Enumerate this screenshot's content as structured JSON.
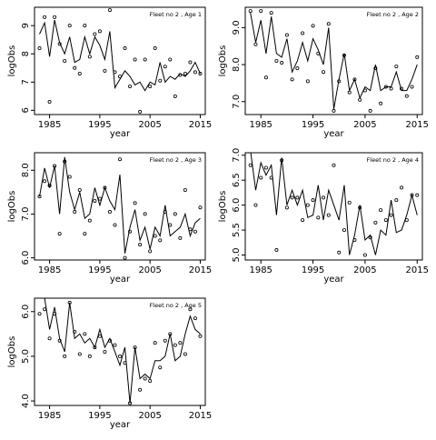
{
  "chart_data": [
    {
      "type": "line",
      "title": "Fleet no 2 , Age 1",
      "xlabel": "year",
      "ylabel": "logObs",
      "xlim": [
        1982,
        2016
      ],
      "ylim": [
        5.85,
        9.65
      ],
      "xticks": [
        1985,
        1995,
        2005,
        2015
      ],
      "xtick_labels": [
        "1985",
        "1995",
        "2005",
        "2015"
      ],
      "yticks": [
        6,
        7,
        8,
        9
      ],
      "ytick_labels": [
        "6",
        "7",
        "8",
        "9"
      ],
      "grid": false,
      "legend": "none",
      "x": [
        1983,
        1984,
        1985,
        1986,
        1987,
        1988,
        1989,
        1990,
        1991,
        1992,
        1993,
        1994,
        1995,
        1996,
        1997,
        1998,
        1999,
        2000,
        2001,
        2002,
        2003,
        2004,
        2005,
        2006,
        2007,
        2008,
        2009,
        2010,
        2011,
        2012,
        2013,
        2014,
        2015
      ],
      "series": [
        {
          "style": "line",
          "values": [
            8.7,
            9.1,
            7.9,
            9.2,
            8.4,
            8.0,
            8.6,
            7.7,
            7.8,
            8.6,
            8.0,
            8.6,
            8.3,
            7.8,
            8.8,
            6.8,
            7.1,
            7.4,
            7.2,
            6.9,
            7.0,
            6.7,
            7.0,
            6.9,
            7.7,
            7.0,
            7.2,
            7.1,
            7.3,
            7.2,
            7.4,
            7.7,
            7.3
          ]
        },
        {
          "style": "points",
          "values": [
            8.2,
            9.3,
            6.3,
            9.3,
            8.35,
            7.75,
            9.0,
            7.5,
            7.3,
            9.0,
            7.9,
            8.7,
            8.8,
            7.4,
            9.55,
            7.35,
            7.2,
            8.2,
            6.85,
            7.8,
            5.95,
            7.8,
            6.85,
            8.2,
            7.05,
            7.55,
            7.8,
            6.5,
            7.25,
            7.3,
            7.7,
            7.35,
            7.3
          ]
        }
      ]
    },
    {
      "type": "line",
      "title": "Fleet no 2 , Age 2",
      "xlabel": "year",
      "ylabel": "logObs",
      "xlim": [
        1982,
        2016
      ],
      "ylim": [
        6.65,
        9.55
      ],
      "xticks": [
        1985,
        1995,
        2005,
        2015
      ],
      "xtick_labels": [
        "1985",
        "1995",
        "2005",
        "2015"
      ],
      "yticks": [
        7.0,
        8.0,
        9.0
      ],
      "ytick_labels": [
        "7.0",
        "8.0",
        "9.0"
      ],
      "grid": false,
      "legend": "none",
      "x": [
        1983,
        1984,
        1985,
        1986,
        1987,
        1988,
        1989,
        1990,
        1991,
        1992,
        1993,
        1994,
        1995,
        1996,
        1997,
        1998,
        1999,
        2000,
        2001,
        2002,
        2003,
        2004,
        2005,
        2006,
        2007,
        2008,
        2009,
        2010,
        2011,
        2012,
        2013,
        2014,
        2015
      ],
      "series": [
        {
          "style": "line",
          "values": [
            9.4,
            8.6,
            9.2,
            8.3,
            9.3,
            8.3,
            8.2,
            8.7,
            7.8,
            8.1,
            8.6,
            8.1,
            8.7,
            8.4,
            8.0,
            9.0,
            6.8,
            7.6,
            8.3,
            7.3,
            7.6,
            7.1,
            7.4,
            7.3,
            8.0,
            7.3,
            7.4,
            7.4,
            7.8,
            7.3,
            7.3,
            7.6,
            8.0
          ]
        },
        {
          "style": "points",
          "values": [
            9.45,
            8.55,
            9.45,
            7.65,
            9.4,
            8.1,
            8.05,
            8.8,
            7.6,
            7.9,
            8.85,
            7.55,
            9.05,
            8.3,
            7.8,
            9.1,
            6.75,
            7.55,
            8.25,
            7.25,
            7.6,
            7.05,
            7.3,
            6.75,
            7.9,
            6.95,
            7.4,
            7.35,
            7.95,
            7.35,
            7.15,
            7.4,
            8.2
          ]
        }
      ]
    },
    {
      "type": "line",
      "title": "Fleet no 2 , Age 3",
      "xlabel": "year",
      "ylabel": "logObs",
      "xlim": [
        1982,
        2016
      ],
      "ylim": [
        5.95,
        8.4
      ],
      "xticks": [
        1985,
        1995,
        2005,
        2015
      ],
      "xtick_labels": [
        "1985",
        "1995",
        "2005",
        "2015"
      ],
      "yticks": [
        6.0,
        7.0,
        8.0
      ],
      "ytick_labels": [
        "6.0",
        "7.0",
        "8.0"
      ],
      "grid": false,
      "legend": "none",
      "x": [
        1983,
        1984,
        1985,
        1986,
        1987,
        1988,
        1989,
        1990,
        1991,
        1992,
        1993,
        1994,
        1995,
        1996,
        1997,
        1998,
        1999,
        2000,
        2001,
        2002,
        2003,
        2004,
        2005,
        2006,
        2007,
        2008,
        2009,
        2010,
        2011,
        2012,
        2013,
        2014,
        2015
      ],
      "series": [
        {
          "style": "line",
          "values": [
            7.4,
            8.05,
            7.6,
            8.1,
            7.0,
            8.3,
            7.5,
            7.1,
            7.5,
            6.9,
            7.0,
            7.6,
            7.2,
            7.6,
            7.3,
            7.1,
            7.9,
            6.1,
            6.7,
            7.1,
            6.4,
            6.7,
            6.2,
            6.7,
            6.5,
            7.2,
            6.5,
            6.6,
            6.7,
            7.0,
            6.5,
            6.8,
            6.9
          ]
        },
        {
          "style": "points",
          "values": [
            7.4,
            7.75,
            7.65,
            8.1,
            6.55,
            8.2,
            7.85,
            7.05,
            7.55,
            6.55,
            6.85,
            7.3,
            7.35,
            7.6,
            7.05,
            6.75,
            8.25,
            6.0,
            6.6,
            7.25,
            6.3,
            7.0,
            6.15,
            6.5,
            6.4,
            7.05,
            6.75,
            7.0,
            6.45,
            7.55,
            6.65,
            6.6,
            7.15
          ]
        }
      ]
    },
    {
      "type": "line",
      "title": "Fleet no 2 , Age 4",
      "xlabel": "year",
      "ylabel": "logObs",
      "xlim": [
        1982,
        2016
      ],
      "ylim": [
        4.9,
        7.05
      ],
      "xticks": [
        1985,
        1995,
        2005,
        2015
      ],
      "xtick_labels": [
        "1985",
        "1995",
        "2005",
        "2015"
      ],
      "yticks": [
        5.0,
        5.5,
        6.0,
        6.5,
        7.0
      ],
      "ytick_labels": [
        "5.0",
        "5.5",
        "6.0",
        "6.5",
        "7.0"
      ],
      "grid": false,
      "legend": "none",
      "x": [
        1983,
        1984,
        1985,
        1986,
        1987,
        1988,
        1989,
        1990,
        1991,
        1992,
        1993,
        1994,
        1995,
        1996,
        1997,
        1998,
        1999,
        2000,
        2001,
        2002,
        2003,
        2004,
        2005,
        2006,
        2007,
        2008,
        2009,
        2010,
        2011,
        2012,
        2013,
        2014,
        2015
      ],
      "series": [
        {
          "style": "line",
          "values": [
            7.1,
            6.3,
            6.85,
            6.6,
            6.8,
            5.8,
            6.95,
            6.0,
            6.3,
            6.0,
            6.3,
            5.75,
            5.8,
            6.4,
            5.7,
            6.3,
            6.0,
            5.7,
            6.4,
            5.0,
            5.4,
            6.0,
            5.3,
            5.4,
            5.0,
            5.5,
            5.4,
            6.1,
            5.45,
            5.5,
            5.8,
            6.2,
            5.8
          ]
        },
        {
          "style": "points",
          "values": [
            6.8,
            6.0,
            6.55,
            6.75,
            6.55,
            5.1,
            6.9,
            5.95,
            6.15,
            6.15,
            5.7,
            6.0,
            6.1,
            5.75,
            6.15,
            5.8,
            6.8,
            5.05,
            5.5,
            6.05,
            5.3,
            5.95,
            5.0,
            5.35,
            5.65,
            5.9,
            5.7,
            5.8,
            6.1,
            6.35,
            5.7,
            6.2,
            6.2
          ]
        }
      ]
    },
    {
      "type": "line",
      "title": "Fleet no 2 , Age 5",
      "xlabel": "year",
      "ylabel": "logObs",
      "xlim": [
        1982,
        2016
      ],
      "ylim": [
        3.9,
        6.3
      ],
      "xticks": [
        1985,
        1995,
        2005,
        2015
      ],
      "xtick_labels": [
        "1985",
        "1995",
        "2005",
        "2015"
      ],
      "yticks": [
        4.0,
        5.0,
        6.0
      ],
      "ytick_labels": [
        "4.0",
        "5.0",
        "6.0"
      ],
      "grid": false,
      "legend": "none",
      "x": [
        1983,
        1984,
        1985,
        1986,
        1987,
        1988,
        1989,
        1990,
        1991,
        1992,
        1993,
        1994,
        1995,
        1996,
        1997,
        1998,
        1999,
        2000,
        2001,
        2002,
        2003,
        2004,
        2005,
        2006,
        2007,
        2008,
        2009,
        2010,
        2011,
        2012,
        2013,
        2014,
        2015
      ],
      "series": [
        {
          "style": "line",
          "values": [
            6.3,
            6.3,
            5.6,
            6.1,
            5.4,
            5.1,
            6.2,
            5.4,
            5.5,
            5.3,
            5.4,
            5.2,
            5.6,
            5.2,
            5.4,
            5.1,
            4.8,
            5.2,
            3.95,
            5.2,
            4.5,
            4.6,
            4.5,
            4.9,
            4.9,
            5.0,
            5.5,
            4.9,
            5.0,
            5.5,
            5.9,
            5.6,
            5.5
          ]
        },
        {
          "style": "points",
          "values": [
            5.95,
            6.05,
            5.4,
            5.95,
            5.35,
            5.0,
            6.2,
            5.55,
            5.05,
            5.5,
            5.0,
            5.2,
            5.45,
            5.1,
            5.35,
            5.25,
            5.0,
            4.85,
            3.95,
            5.2,
            4.25,
            4.5,
            4.45,
            5.3,
            4.75,
            5.35,
            5.5,
            5.25,
            5.3,
            5.05,
            6.05,
            5.85,
            5.45
          ]
        }
      ]
    }
  ]
}
